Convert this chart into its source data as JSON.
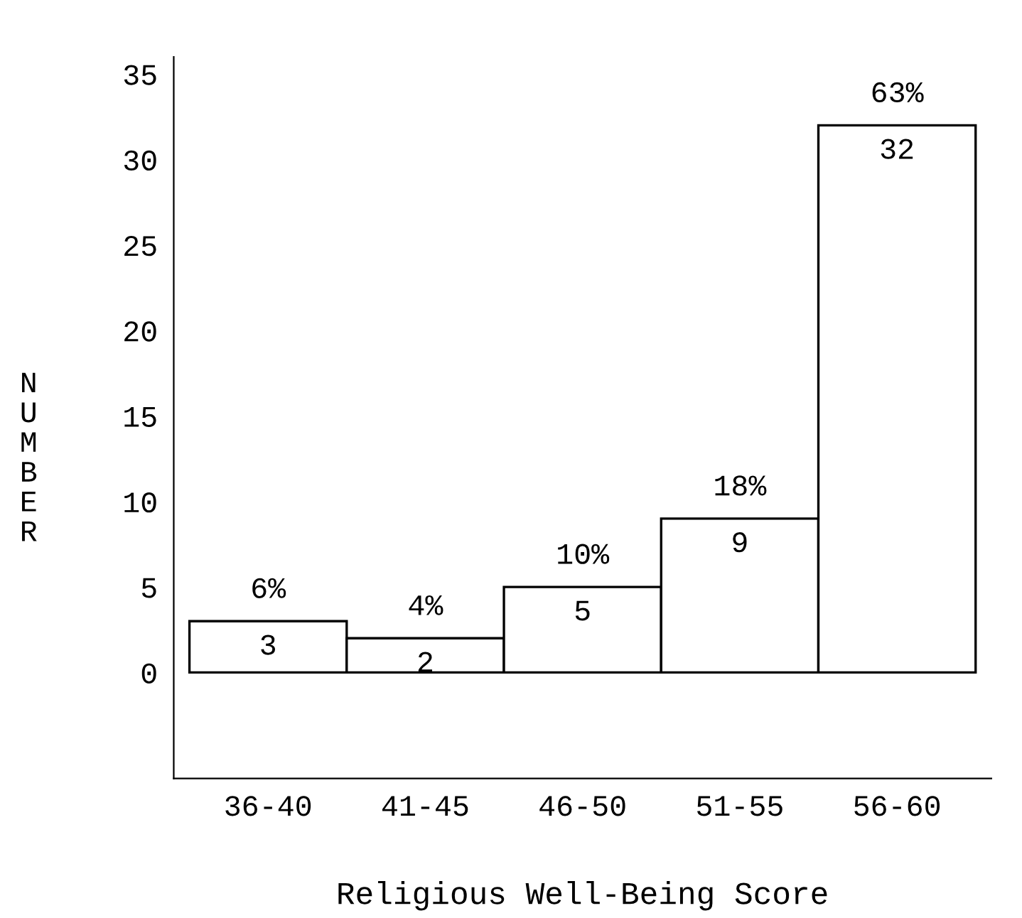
{
  "chart_data": {
    "type": "bar",
    "xlabel": "Religious Well-Being Score",
    "ylabel": "NUMBER",
    "categories": [
      "36-40",
      "41-45",
      "46-50",
      "51-55",
      "56-60"
    ],
    "values": [
      3,
      2,
      5,
      9,
      32
    ],
    "color": "#ffffff",
    "data_labels": true,
    "annotations": [
      {
        "text": "6%",
        "x": "36-40",
        "y": 3
      },
      {
        "text": "4%",
        "x": "41-45",
        "y": 2
      },
      {
        "text": "10%",
        "x": "46-50",
        "y": 5
      },
      {
        "text": "18%",
        "x": "51-55",
        "y": 9
      },
      {
        "text": "63%",
        "x": "56-60",
        "y": 32
      }
    ],
    "ylim": [
      -6.2,
      36
    ],
    "yticks": [
      0,
      5,
      10,
      15,
      20,
      25,
      30,
      35
    ],
    "grid": false,
    "legend": false
  }
}
